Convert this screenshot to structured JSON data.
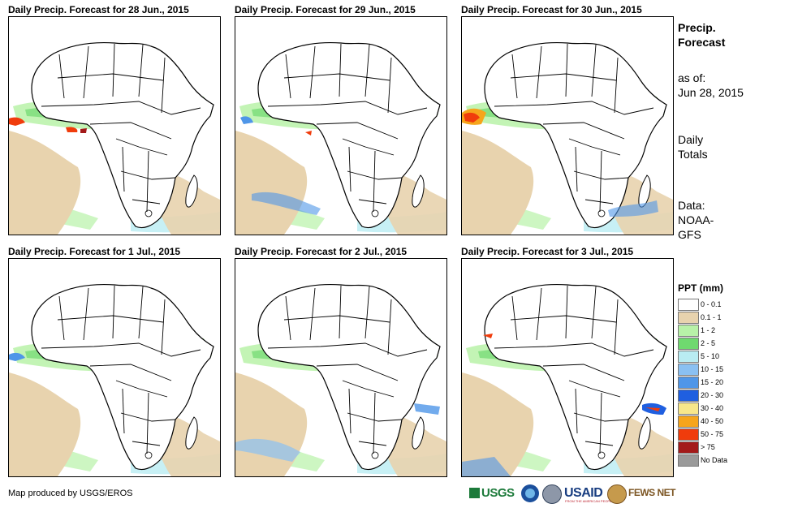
{
  "panels": [
    {
      "title": "Daily Precip. Forecast for 28 Jun., 2015"
    },
    {
      "title": "Daily Precip. Forecast for 29 Jun., 2015"
    },
    {
      "title": "Daily Precip. Forecast for 30 Jun., 2015"
    },
    {
      "title": "Daily Precip. Forecast for 1 Jul., 2015"
    },
    {
      "title": "Daily Precip. Forecast for 2 Jul., 2015"
    },
    {
      "title": "Daily Precip. Forecast for 3 Jul., 2015"
    }
  ],
  "sidebar": {
    "title_line1": "Precip.",
    "title_line2": "Forecast",
    "asof_label": "as of:",
    "asof_date": "Jun 28, 2015",
    "totals_line1": "Daily",
    "totals_line2": "Totals",
    "data_line1": "Data:",
    "data_line2": "NOAA-",
    "data_line3": "GFS"
  },
  "legend": {
    "title": "PPT (mm)",
    "items": [
      {
        "label": "0 - 0.1",
        "color": "#ffffff"
      },
      {
        "label": "0.1 - 1",
        "color": "#e8d3ae"
      },
      {
        "label": "1 - 2",
        "color": "#b8f2a8"
      },
      {
        "label": "2 - 5",
        "color": "#6fd96f"
      },
      {
        "label": "5 - 10",
        "color": "#b9ecf2"
      },
      {
        "label": "10 - 15",
        "color": "#8ac0f2"
      },
      {
        "label": "15 - 20",
        "color": "#4f96e8"
      },
      {
        "label": "20 - 30",
        "color": "#1f5fe0"
      },
      {
        "label": "30 - 40",
        "color": "#f8e78a"
      },
      {
        "label": "40 - 50",
        "color": "#f6a51b"
      },
      {
        "label": "50 - 75",
        "color": "#f03c0c"
      },
      {
        "label": "> 75",
        "color": "#a31a1a"
      },
      {
        "label": "No Data",
        "color": "#9a9a9a"
      }
    ]
  },
  "credit": "Map produced by USGS/EROS",
  "logos": {
    "usgs": "USGS",
    "usgs_sub": "science for a changing world",
    "noaa": "noaa-logo",
    "dhs": "seal-logo",
    "usaid": "USAID",
    "usaid_sub": "FROM THE AMERICAN PEOPLE",
    "fews": "FEWS NET"
  }
}
